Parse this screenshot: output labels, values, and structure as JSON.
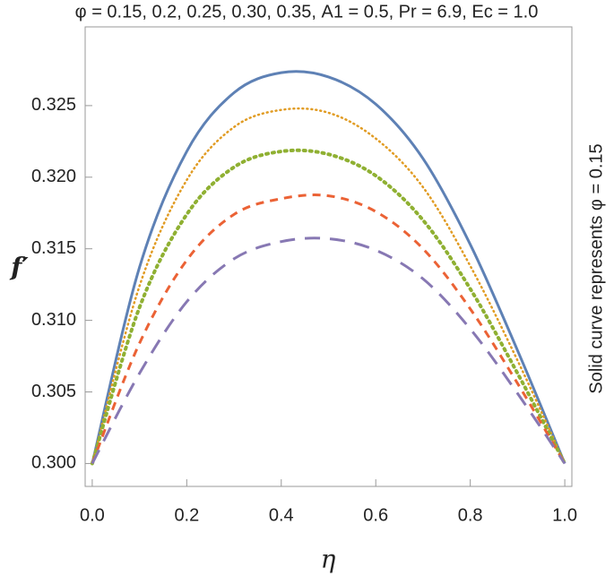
{
  "chart_data": {
    "type": "line",
    "title": "φ = 0.15, 0.2, 0.25, 0.30, 0.35, A1 = 0.5, Pr = 6.9, Ec = 1.0",
    "xlabel": "η",
    "ylabel": "f′",
    "annotation": "Solid curve represents φ = 0.15",
    "x": [
      0,
      0.1,
      0.2,
      0.3,
      0.4,
      0.5,
      0.6,
      0.7,
      0.8,
      0.9,
      1.0
    ],
    "series": [
      {
        "color": "#5e81b5",
        "style": "solid",
        "values": [
          0.3,
          0.3137,
          0.3218,
          0.3259,
          0.3273,
          0.327,
          0.3251,
          0.3213,
          0.3153,
          0.3079,
          0.3
        ]
      },
      {
        "color": "#e19c24",
        "style": "dotted",
        "values": [
          0.3,
          0.3124,
          0.3198,
          0.3235,
          0.3247,
          0.3245,
          0.3227,
          0.3193,
          0.3138,
          0.3072,
          0.3
        ]
      },
      {
        "color": "#8fb032",
        "style": "dense-dotted",
        "values": [
          0.3,
          0.3109,
          0.3174,
          0.3207,
          0.3218,
          0.3216,
          0.3201,
          0.317,
          0.3122,
          0.3063,
          0.3
        ]
      },
      {
        "color": "#eb6235",
        "style": "dashed",
        "values": [
          0.3,
          0.3084,
          0.3142,
          0.3174,
          0.3185,
          0.3187,
          0.3176,
          0.315,
          0.3108,
          0.3056,
          0.3
        ]
      },
      {
        "color": "#8778b3",
        "style": "long-dashed",
        "values": [
          0.3,
          0.3063,
          0.3113,
          0.3143,
          0.3155,
          0.3157,
          0.3149,
          0.3129,
          0.3094,
          0.3049,
          0.3
        ]
      }
    ],
    "xlim": [
      -0.015,
      1.015
    ],
    "ylim": [
      0.2984,
      0.3305
    ],
    "xticks": [
      {
        "value": 0,
        "label": "0.0"
      },
      0.2,
      0.4,
      0.6,
      0.8,
      {
        "value": 1,
        "label": "1.0"
      }
    ],
    "yticks": [
      {
        "value": 0.3,
        "label": "0.300"
      },
      {
        "value": 0.305,
        "label": "0.305"
      },
      {
        "value": 0.31,
        "label": "0.310"
      },
      {
        "value": 0.315,
        "label": "0.315"
      },
      {
        "value": 0.32,
        "label": "0.320"
      },
      {
        "value": 0.325,
        "label": "0.325"
      }
    ],
    "grid": false
  }
}
